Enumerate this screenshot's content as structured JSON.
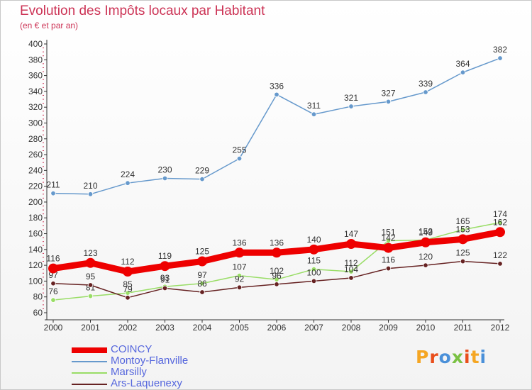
{
  "header": {
    "title": "Evolution des Impôts locaux par Habitant",
    "subtitle": "(en € et par an)"
  },
  "logo": {
    "text": "Proxiti",
    "colors": [
      "#f5a623",
      "#e94e1b",
      "#4a90d9",
      "#7ac143",
      "#e94e1b",
      "#f5a623",
      "#4a90d9"
    ]
  },
  "chart_data": {
    "type": "line",
    "title": "Evolution des Impôts locaux par Habitant",
    "subtitle": "(en € et par an)",
    "x": [
      "2000",
      "2001",
      "2002",
      "2003",
      "2004",
      "2005",
      "2006",
      "2007",
      "2008",
      "2009",
      "2010",
      "2011",
      "2012"
    ],
    "ylim": [
      60,
      400
    ],
    "yticks": [
      60,
      80,
      100,
      120,
      140,
      160,
      180,
      200,
      220,
      240,
      260,
      280,
      300,
      320,
      340,
      360,
      380,
      400
    ],
    "grid": false,
    "legend_position": "bottom-left",
    "series": [
      {
        "name": "COINCY",
        "color": "#ee0000",
        "values": [
          116,
          123,
          112,
          119,
          125,
          136,
          136,
          140,
          147,
          142,
          149,
          153,
          162
        ]
      },
      {
        "name": "Montoy-Flanville",
        "color": "#6699cc",
        "values": [
          211,
          210,
          224,
          230,
          229,
          255,
          336,
          311,
          321,
          327,
          339,
          364,
          382
        ]
      },
      {
        "name": "Marsilly",
        "color": "#99dd66",
        "values": [
          76,
          81,
          85,
          93,
          97,
          107,
          102,
          115,
          112,
          151,
          152,
          165,
          174
        ]
      },
      {
        "name": "Ars-Laquenexy",
        "color": "#662222",
        "values": [
          97,
          95,
          79,
          91,
          86,
          92,
          96,
          100,
          104,
          116,
          120,
          125,
          122
        ]
      }
    ]
  }
}
